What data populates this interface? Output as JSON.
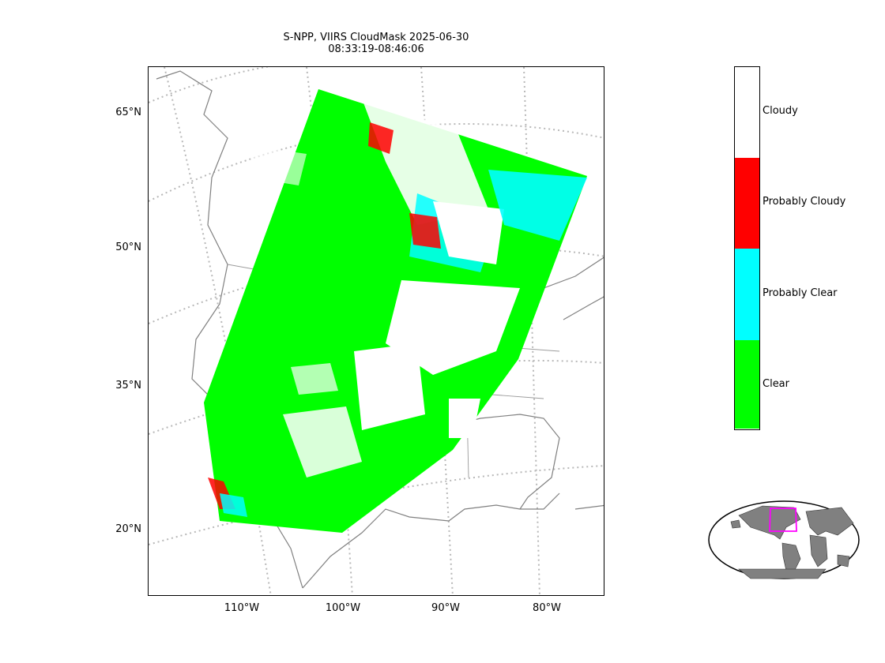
{
  "title": {
    "line1": "S-NPP, VIIRS CloudMask 2025-06-30",
    "line2": "08:33:19-08:46:06"
  },
  "lat_labels": [
    "65°N",
    "50°N",
    "35°N",
    "20°N"
  ],
  "lon_labels": [
    "110°W",
    "100°W",
    "90°W",
    "80°W"
  ],
  "legend": {
    "classes": [
      {
        "label": "Cloudy",
        "color": "#ffffff"
      },
      {
        "label": "Probably Cloudy",
        "color": "#ff0000"
      },
      {
        "label": "Probably Clear",
        "color": "#00ffff"
      },
      {
        "label": "Clear",
        "color": "#00ff00"
      }
    ]
  },
  "colors": {
    "coastline": "#808080",
    "graticule": "#b8b8b8",
    "inset_box": "#ff00ff",
    "land_inset": "#808080"
  },
  "icons": {
    "inset": "world-locator-map-icon"
  }
}
